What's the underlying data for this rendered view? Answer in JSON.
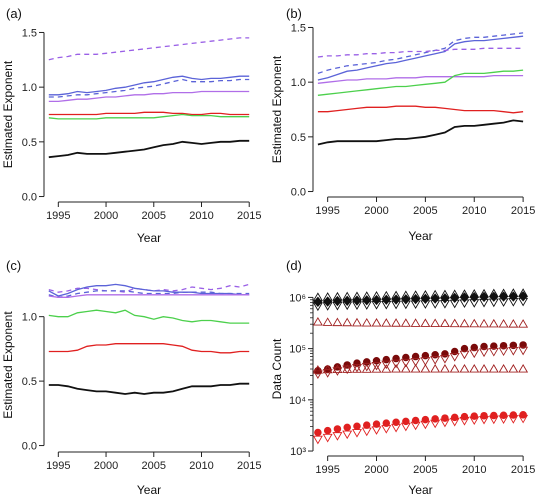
{
  "chart_data": [
    {
      "panel": "(a)",
      "type": "line",
      "xlabel": "Year",
      "ylabel": "Estimated Exponent",
      "xlim": [
        1993.5,
        2015.5
      ],
      "ylim": [
        -0.05,
        1.55
      ],
      "xticks": [
        1995,
        2000,
        2005,
        2010,
        2015
      ],
      "yticks": [
        0.0,
        0.5,
        1.0,
        1.5
      ],
      "ytick_labels": [
        "0.0",
        "0.5",
        "1.0",
        "1.5"
      ],
      "x": [
        1994,
        1995,
        1996,
        1997,
        1998,
        1999,
        2000,
        2001,
        2002,
        2003,
        2004,
        2005,
        2006,
        2007,
        2008,
        2009,
        2010,
        2011,
        2012,
        2013,
        2014,
        2015
      ],
      "series": [
        {
          "color": "#9a60e6",
          "dash": "5,4",
          "values": [
            1.25,
            1.27,
            1.28,
            1.3,
            1.3,
            1.3,
            1.31,
            1.32,
            1.33,
            1.34,
            1.35,
            1.36,
            1.37,
            1.38,
            1.39,
            1.4,
            1.41,
            1.42,
            1.43,
            1.44,
            1.45,
            1.45
          ]
        },
        {
          "color": "#5b63d8",
          "dash": "",
          "values": [
            0.93,
            0.93,
            0.94,
            0.96,
            0.95,
            0.96,
            0.97,
            0.99,
            1.0,
            1.02,
            1.04,
            1.05,
            1.07,
            1.09,
            1.1,
            1.08,
            1.07,
            1.08,
            1.08,
            1.09,
            1.1,
            1.1
          ]
        },
        {
          "color": "#5b63d8",
          "dash": "5,4",
          "values": [
            0.91,
            0.91,
            0.92,
            0.93,
            0.93,
            0.94,
            0.95,
            0.96,
            0.97,
            0.99,
            1.0,
            1.01,
            1.03,
            1.05,
            1.07,
            1.05,
            1.05,
            1.05,
            1.06,
            1.06,
            1.07,
            1.07
          ]
        },
        {
          "color": "#b06ee8",
          "dash": "",
          "values": [
            0.87,
            0.87,
            0.88,
            0.89,
            0.89,
            0.9,
            0.91,
            0.91,
            0.92,
            0.93,
            0.93,
            0.94,
            0.94,
            0.95,
            0.95,
            0.95,
            0.96,
            0.96,
            0.96,
            0.96,
            0.96,
            0.96
          ]
        },
        {
          "color": "#e02020",
          "dash": "",
          "values": [
            0.75,
            0.75,
            0.75,
            0.75,
            0.75,
            0.75,
            0.76,
            0.76,
            0.76,
            0.76,
            0.77,
            0.77,
            0.77,
            0.76,
            0.76,
            0.75,
            0.75,
            0.76,
            0.76,
            0.75,
            0.75,
            0.75
          ]
        },
        {
          "color": "#4cd04c",
          "dash": "",
          "values": [
            0.72,
            0.71,
            0.71,
            0.71,
            0.71,
            0.71,
            0.72,
            0.72,
            0.72,
            0.72,
            0.72,
            0.72,
            0.73,
            0.74,
            0.75,
            0.74,
            0.74,
            0.74,
            0.73,
            0.73,
            0.73,
            0.73
          ]
        },
        {
          "color": "#111111",
          "dash": "",
          "values": [
            0.36,
            0.37,
            0.38,
            0.4,
            0.39,
            0.39,
            0.39,
            0.4,
            0.41,
            0.42,
            0.43,
            0.45,
            0.47,
            0.48,
            0.5,
            0.49,
            0.48,
            0.49,
            0.5,
            0.5,
            0.51,
            0.51
          ]
        }
      ]
    },
    {
      "panel": "(b)",
      "type": "line",
      "xlabel": "Year",
      "ylabel": "Estimated Exponent",
      "xlim": [
        1993.5,
        2015.5
      ],
      "ylim": [
        -0.05,
        1.55
      ],
      "xticks": [
        1995,
        2000,
        2005,
        2010,
        2015
      ],
      "yticks": [
        0.0,
        0.5,
        1.0,
        1.5
      ],
      "ytick_labels": [
        "0.0",
        "0.5",
        "1.0",
        "1.5"
      ],
      "x": [
        1994,
        1995,
        1996,
        1997,
        1998,
        1999,
        2000,
        2001,
        2002,
        2003,
        2004,
        2005,
        2006,
        2007,
        2008,
        2009,
        2010,
        2011,
        2012,
        2013,
        2014,
        2015
      ],
      "series": [
        {
          "color": "#5b63d8",
          "dash": "5,4",
          "values": [
            1.08,
            1.11,
            1.13,
            1.15,
            1.16,
            1.17,
            1.18,
            1.2,
            1.21,
            1.23,
            1.25,
            1.27,
            1.29,
            1.31,
            1.38,
            1.4,
            1.41,
            1.41,
            1.42,
            1.43,
            1.44,
            1.45
          ]
        },
        {
          "color": "#5b63d8",
          "dash": "",
          "values": [
            1.02,
            1.04,
            1.07,
            1.1,
            1.11,
            1.13,
            1.15,
            1.17,
            1.18,
            1.2,
            1.22,
            1.24,
            1.26,
            1.28,
            1.35,
            1.37,
            1.38,
            1.38,
            1.39,
            1.4,
            1.41,
            1.42
          ]
        },
        {
          "color": "#9a60e6",
          "dash": "5,4",
          "values": [
            1.23,
            1.24,
            1.24,
            1.25,
            1.25,
            1.26,
            1.26,
            1.27,
            1.27,
            1.28,
            1.28,
            1.28,
            1.29,
            1.29,
            1.3,
            1.3,
            1.3,
            1.31,
            1.31,
            1.31,
            1.31,
            1.31
          ]
        },
        {
          "color": "#b06ee8",
          "dash": "",
          "values": [
            0.99,
            1.0,
            1.01,
            1.02,
            1.02,
            1.03,
            1.03,
            1.03,
            1.04,
            1.04,
            1.04,
            1.05,
            1.05,
            1.05,
            1.05,
            1.05,
            1.05,
            1.05,
            1.06,
            1.06,
            1.06,
            1.06
          ]
        },
        {
          "color": "#4cd04c",
          "dash": "",
          "values": [
            0.88,
            0.89,
            0.9,
            0.91,
            0.92,
            0.93,
            0.94,
            0.95,
            0.96,
            0.96,
            0.97,
            0.98,
            0.99,
            1.0,
            1.06,
            1.08,
            1.08,
            1.08,
            1.09,
            1.1,
            1.1,
            1.11
          ]
        },
        {
          "color": "#e02020",
          "dash": "",
          "values": [
            0.73,
            0.73,
            0.74,
            0.75,
            0.76,
            0.77,
            0.77,
            0.77,
            0.78,
            0.78,
            0.78,
            0.77,
            0.77,
            0.76,
            0.75,
            0.74,
            0.74,
            0.74,
            0.74,
            0.73,
            0.72,
            0.73
          ]
        },
        {
          "color": "#111111",
          "dash": "",
          "values": [
            0.43,
            0.45,
            0.46,
            0.46,
            0.46,
            0.46,
            0.46,
            0.47,
            0.48,
            0.48,
            0.49,
            0.5,
            0.52,
            0.54,
            0.59,
            0.6,
            0.6,
            0.61,
            0.62,
            0.63,
            0.65,
            0.64
          ]
        }
      ]
    },
    {
      "panel": "(c)",
      "type": "line",
      "xlabel": "Year",
      "ylabel": "Estimated Exponent",
      "xlim": [
        1993.5,
        2015.5
      ],
      "ylim": [
        -0.05,
        1.3
      ],
      "xticks": [
        1995,
        2000,
        2005,
        2010,
        2015
      ],
      "yticks": [
        0.0,
        0.5,
        1.0
      ],
      "ytick_labels": [
        "0.0",
        "0.5",
        "1.0"
      ],
      "x": [
        1994,
        1995,
        1996,
        1997,
        1998,
        1999,
        2000,
        2001,
        2002,
        2003,
        2004,
        2005,
        2006,
        2007,
        2008,
        2009,
        2010,
        2011,
        2012,
        2013,
        2014,
        2015
      ],
      "series": [
        {
          "color": "#9a60e6",
          "dash": "5,4",
          "values": [
            1.21,
            1.19,
            1.2,
            1.22,
            1.22,
            1.21,
            1.2,
            1.2,
            1.19,
            1.22,
            1.21,
            1.2,
            1.21,
            1.2,
            1.21,
            1.23,
            1.22,
            1.21,
            1.22,
            1.24,
            1.23,
            1.25
          ]
        },
        {
          "color": "#5b63d8",
          "dash": "",
          "values": [
            1.2,
            1.16,
            1.18,
            1.21,
            1.23,
            1.24,
            1.24,
            1.25,
            1.24,
            1.22,
            1.21,
            1.2,
            1.2,
            1.19,
            1.19,
            1.19,
            1.18,
            1.18,
            1.18,
            1.18,
            1.17,
            1.17
          ]
        },
        {
          "color": "#5b63d8",
          "dash": "5,4",
          "values": [
            1.17,
            1.15,
            1.16,
            1.18,
            1.19,
            1.2,
            1.2,
            1.2,
            1.2,
            1.19,
            1.18,
            1.18,
            1.18,
            1.18,
            1.19,
            1.19,
            1.19,
            1.19,
            1.18,
            1.18,
            1.18,
            1.18
          ]
        },
        {
          "color": "#b06ee8",
          "dash": "",
          "values": [
            1.16,
            1.15,
            1.15,
            1.16,
            1.17,
            1.17,
            1.17,
            1.17,
            1.17,
            1.17,
            1.17,
            1.17,
            1.17,
            1.17,
            1.17,
            1.17,
            1.17,
            1.17,
            1.17,
            1.17,
            1.17,
            1.17
          ]
        },
        {
          "color": "#4cd04c",
          "dash": "",
          "values": [
            1.01,
            1.0,
            1.0,
            1.03,
            1.04,
            1.05,
            1.04,
            1.03,
            1.05,
            1.01,
            1.0,
            0.98,
            1.0,
            0.99,
            0.97,
            0.96,
            0.97,
            0.97,
            0.96,
            0.95,
            0.95,
            0.95
          ]
        },
        {
          "color": "#e02020",
          "dash": "",
          "values": [
            0.73,
            0.73,
            0.73,
            0.74,
            0.77,
            0.78,
            0.78,
            0.79,
            0.79,
            0.79,
            0.79,
            0.79,
            0.79,
            0.78,
            0.77,
            0.74,
            0.73,
            0.73,
            0.72,
            0.72,
            0.73,
            0.73
          ]
        },
        {
          "color": "#111111",
          "dash": "",
          "values": [
            0.47,
            0.47,
            0.46,
            0.44,
            0.43,
            0.42,
            0.42,
            0.41,
            0.4,
            0.41,
            0.4,
            0.41,
            0.41,
            0.42,
            0.44,
            0.46,
            0.46,
            0.46,
            0.47,
            0.47,
            0.48,
            0.48
          ]
        }
      ]
    },
    {
      "panel": "(d)",
      "type": "scatter",
      "xlabel": "Year",
      "ylabel": "Data Count",
      "log_y": true,
      "xlim": [
        1993.5,
        2015.5
      ],
      "ylim": [
        800,
        2000000
      ],
      "xticks": [
        1995,
        2000,
        2005,
        2010,
        2015
      ],
      "yticks": [
        1000,
        10000,
        100000,
        1000000
      ],
      "ytick_labels": [
        "10³",
        "10⁴",
        "10⁵",
        "10⁶"
      ],
      "x": [
        1994,
        1995,
        1996,
        1997,
        1998,
        1999,
        2000,
        2001,
        2002,
        2003,
        2004,
        2005,
        2006,
        2007,
        2008,
        2009,
        2010,
        2011,
        2012,
        2013,
        2014,
        2015
      ],
      "series": [
        {
          "color": "#111111",
          "marker": "diamond",
          "fill": true,
          "values": [
            820000,
            830000,
            850000,
            860000,
            870000,
            880000,
            890000,
            900000,
            910000,
            920000,
            930000,
            940000,
            950000,
            960000,
            980000,
            1000000,
            1010000,
            1020000,
            1030000,
            1040000,
            1040000,
            1050000
          ]
        },
        {
          "color": "#111111",
          "marker": "triangle-up",
          "fill": false,
          "values": [
            1000000,
            1010000,
            1020000,
            1030000,
            1040000,
            1050000,
            1060000,
            1070000,
            1080000,
            1090000,
            1100000,
            1110000,
            1120000,
            1130000,
            1140000,
            1150000,
            1160000,
            1170000,
            1180000,
            1190000,
            1200000,
            1200000
          ]
        },
        {
          "color": "#111111",
          "marker": "triangle-down",
          "fill": false,
          "values": [
            680000,
            690000,
            700000,
            710000,
            715000,
            720000,
            725000,
            730000,
            735000,
            740000,
            745000,
            750000,
            755000,
            760000,
            770000,
            780000,
            790000,
            800000,
            810000,
            820000,
            830000,
            840000
          ]
        },
        {
          "color": "#a02020",
          "marker": "triangle-up",
          "fill": false,
          "values": [
            330000,
            325000,
            322000,
            320000,
            318000,
            316000,
            315000,
            314000,
            313000,
            312000,
            311000,
            310000,
            309000,
            308000,
            307000,
            306000,
            305000,
            304000,
            303000,
            302000,
            301000,
            300000
          ]
        },
        {
          "color": "#7a0a0a",
          "marker": "circle",
          "fill": true,
          "values": [
            37000,
            40000,
            44000,
            48000,
            52000,
            55000,
            58000,
            61000,
            64000,
            67000,
            70000,
            73000,
            76000,
            79000,
            88000,
            100000,
            105000,
            110000,
            112000,
            114000,
            116000,
            118000
          ]
        },
        {
          "color": "#a02020",
          "marker": "triangle-down",
          "fill": false,
          "values": [
            32000,
            34000,
            37000,
            40000,
            43000,
            45000,
            47000,
            50000,
            52000,
            54000,
            56000,
            58000,
            61000,
            64000,
            70000,
            78000,
            82000,
            86000,
            88000,
            90000,
            92000,
            93000
          ]
        },
        {
          "color": "#a02020",
          "marker": "triangle-up",
          "fill": false,
          "values": [
            38000,
            38500,
            39000,
            39200,
            39400,
            39500,
            39600,
            39700,
            39800,
            39800,
            39800,
            39800,
            39800,
            39800,
            39800,
            39800,
            39800,
            39800,
            39800,
            39800,
            39800,
            39800
          ]
        },
        {
          "color": "#e02020",
          "marker": "circle",
          "fill": true,
          "values": [
            2300,
            2500,
            2700,
            2900,
            3050,
            3200,
            3350,
            3500,
            3650,
            3800,
            3950,
            4100,
            4250,
            4400,
            4550,
            4700,
            4800,
            4900,
            4950,
            5000,
            5050,
            5100
          ]
        },
        {
          "color": "#e02020",
          "marker": "triangle-down",
          "fill": false,
          "values": [
            1700,
            1850,
            2000,
            2150,
            2300,
            2450,
            2600,
            2750,
            2900,
            3050,
            3200,
            3350,
            3500,
            3650,
            3800,
            3950,
            4050,
            4150,
            4200,
            4250,
            4300,
            4350
          ]
        }
      ]
    }
  ]
}
